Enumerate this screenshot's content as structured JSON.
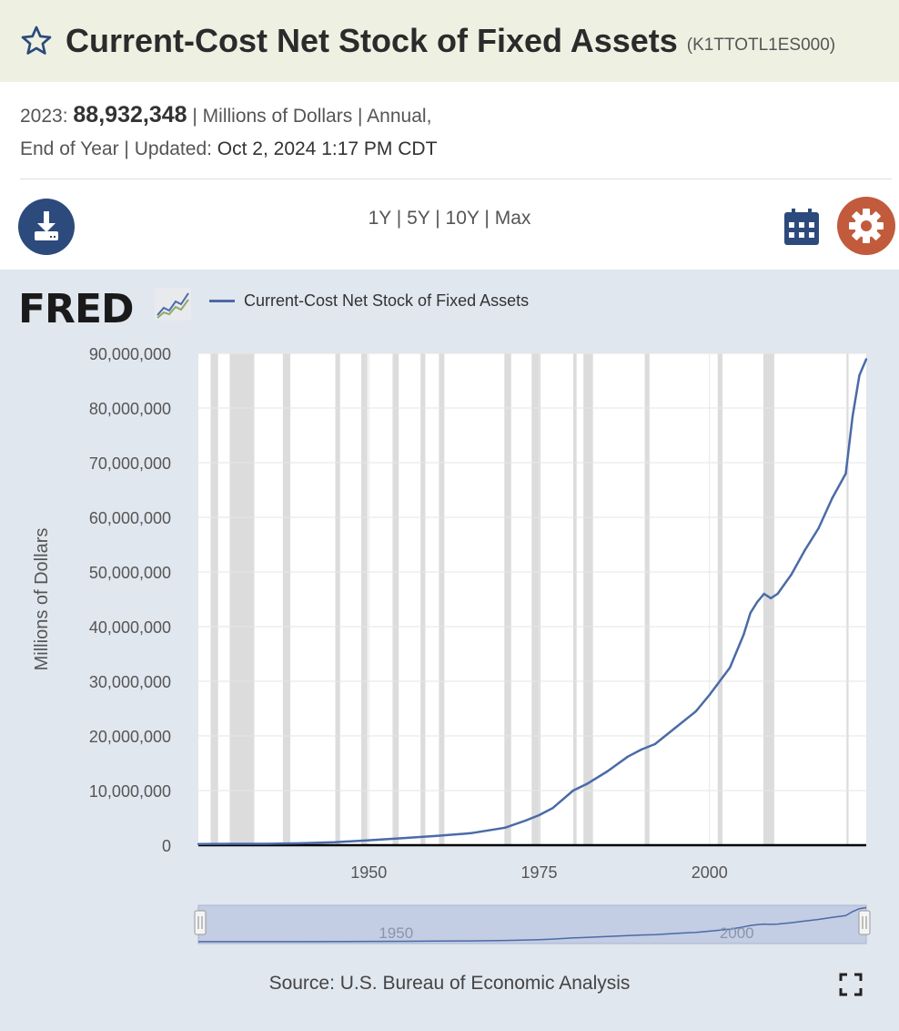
{
  "header": {
    "title": "Current-Cost Net Stock of Fixed Assets",
    "series_id": "(K1TTOTL1ES000)"
  },
  "meta": {
    "year_label": "2023:",
    "latest_value": "88,932,348",
    "units_freq": "| Millions of Dollars | Annual,",
    "line2_prefix": "End of Year | Updated: ",
    "updated": "Oct 2, 2024 1:17 PM CDT"
  },
  "toolbar": {
    "range_1y": "1Y",
    "range_5y": "5Y",
    "range_10y": "10Y",
    "range_max": "Max",
    "sep": "|"
  },
  "logo": {
    "text": "FRED"
  },
  "source": "Source: U.S. Bureau of Economic Analysis",
  "colors": {
    "series": "#4b6aa8",
    "recession": "#dcdcdc",
    "panel": "#e1e7ef",
    "title_bg": "#eef1e2",
    "settings": "#c15b3c",
    "download": "#2c4a7c"
  },
  "chart_data": {
    "type": "line",
    "title": "",
    "ylabel": "Millions of Dollars",
    "xlabel": "",
    "xlim": [
      1925,
      2023
    ],
    "ylim": [
      0,
      90000000
    ],
    "y_ticks": [
      0,
      10000000,
      20000000,
      30000000,
      40000000,
      50000000,
      60000000,
      70000000,
      80000000,
      90000000
    ],
    "y_tick_labels": [
      "0",
      "10,000,000",
      "20,000,000",
      "30,000,000",
      "40,000,000",
      "50,000,000",
      "60,000,000",
      "70,000,000",
      "80,000,000",
      "90,000,000"
    ],
    "x_ticks": [
      1950,
      1975,
      2000
    ],
    "x_tick_labels": [
      "1950",
      "1975",
      "2000"
    ],
    "navigator_labels": [
      "1950",
      "2000"
    ],
    "recessions": [
      [
        1926.8,
        1927.9
      ],
      [
        1929.6,
        1933.2
      ],
      [
        1937.4,
        1938.5
      ],
      [
        1945.1,
        1945.8
      ],
      [
        1948.9,
        1949.8
      ],
      [
        1953.5,
        1954.4
      ],
      [
        1957.6,
        1958.3
      ],
      [
        1960.3,
        1961.1
      ],
      [
        1969.9,
        1970.9
      ],
      [
        1973.9,
        1975.2
      ],
      [
        1980.0,
        1980.5
      ],
      [
        1981.5,
        1982.9
      ],
      [
        1990.5,
        1991.2
      ],
      [
        2001.2,
        2001.9
      ],
      [
        2007.9,
        2009.5
      ],
      [
        2020.1,
        2020.4
      ]
    ],
    "series": [
      {
        "name": "Current-Cost Net Stock of Fixed Assets",
        "x": [
          1925,
          1930,
          1935,
          1940,
          1945,
          1950,
          1955,
          1960,
          1965,
          1970,
          1973,
          1975,
          1977,
          1980,
          1982,
          1985,
          1988,
          1990,
          1992,
          1995,
          1998,
          2000,
          2003,
          2005,
          2006,
          2007,
          2008,
          2009,
          2010,
          2012,
          2014,
          2016,
          2018,
          2020,
          2021,
          2022,
          2023
        ],
        "values": [
          200000,
          250000,
          250000,
          350000,
          550000,
          900000,
          1300000,
          1700000,
          2200000,
          3200000,
          4500000,
          5500000,
          6800000,
          10000000,
          11200000,
          13500000,
          16200000,
          17500000,
          18500000,
          21500000,
          24500000,
          27500000,
          32500000,
          38500000,
          42500000,
          44500000,
          46000000,
          45200000,
          46000000,
          49500000,
          54000000,
          58000000,
          63500000,
          68000000,
          78500000,
          86000000,
          88932348
        ]
      }
    ]
  }
}
